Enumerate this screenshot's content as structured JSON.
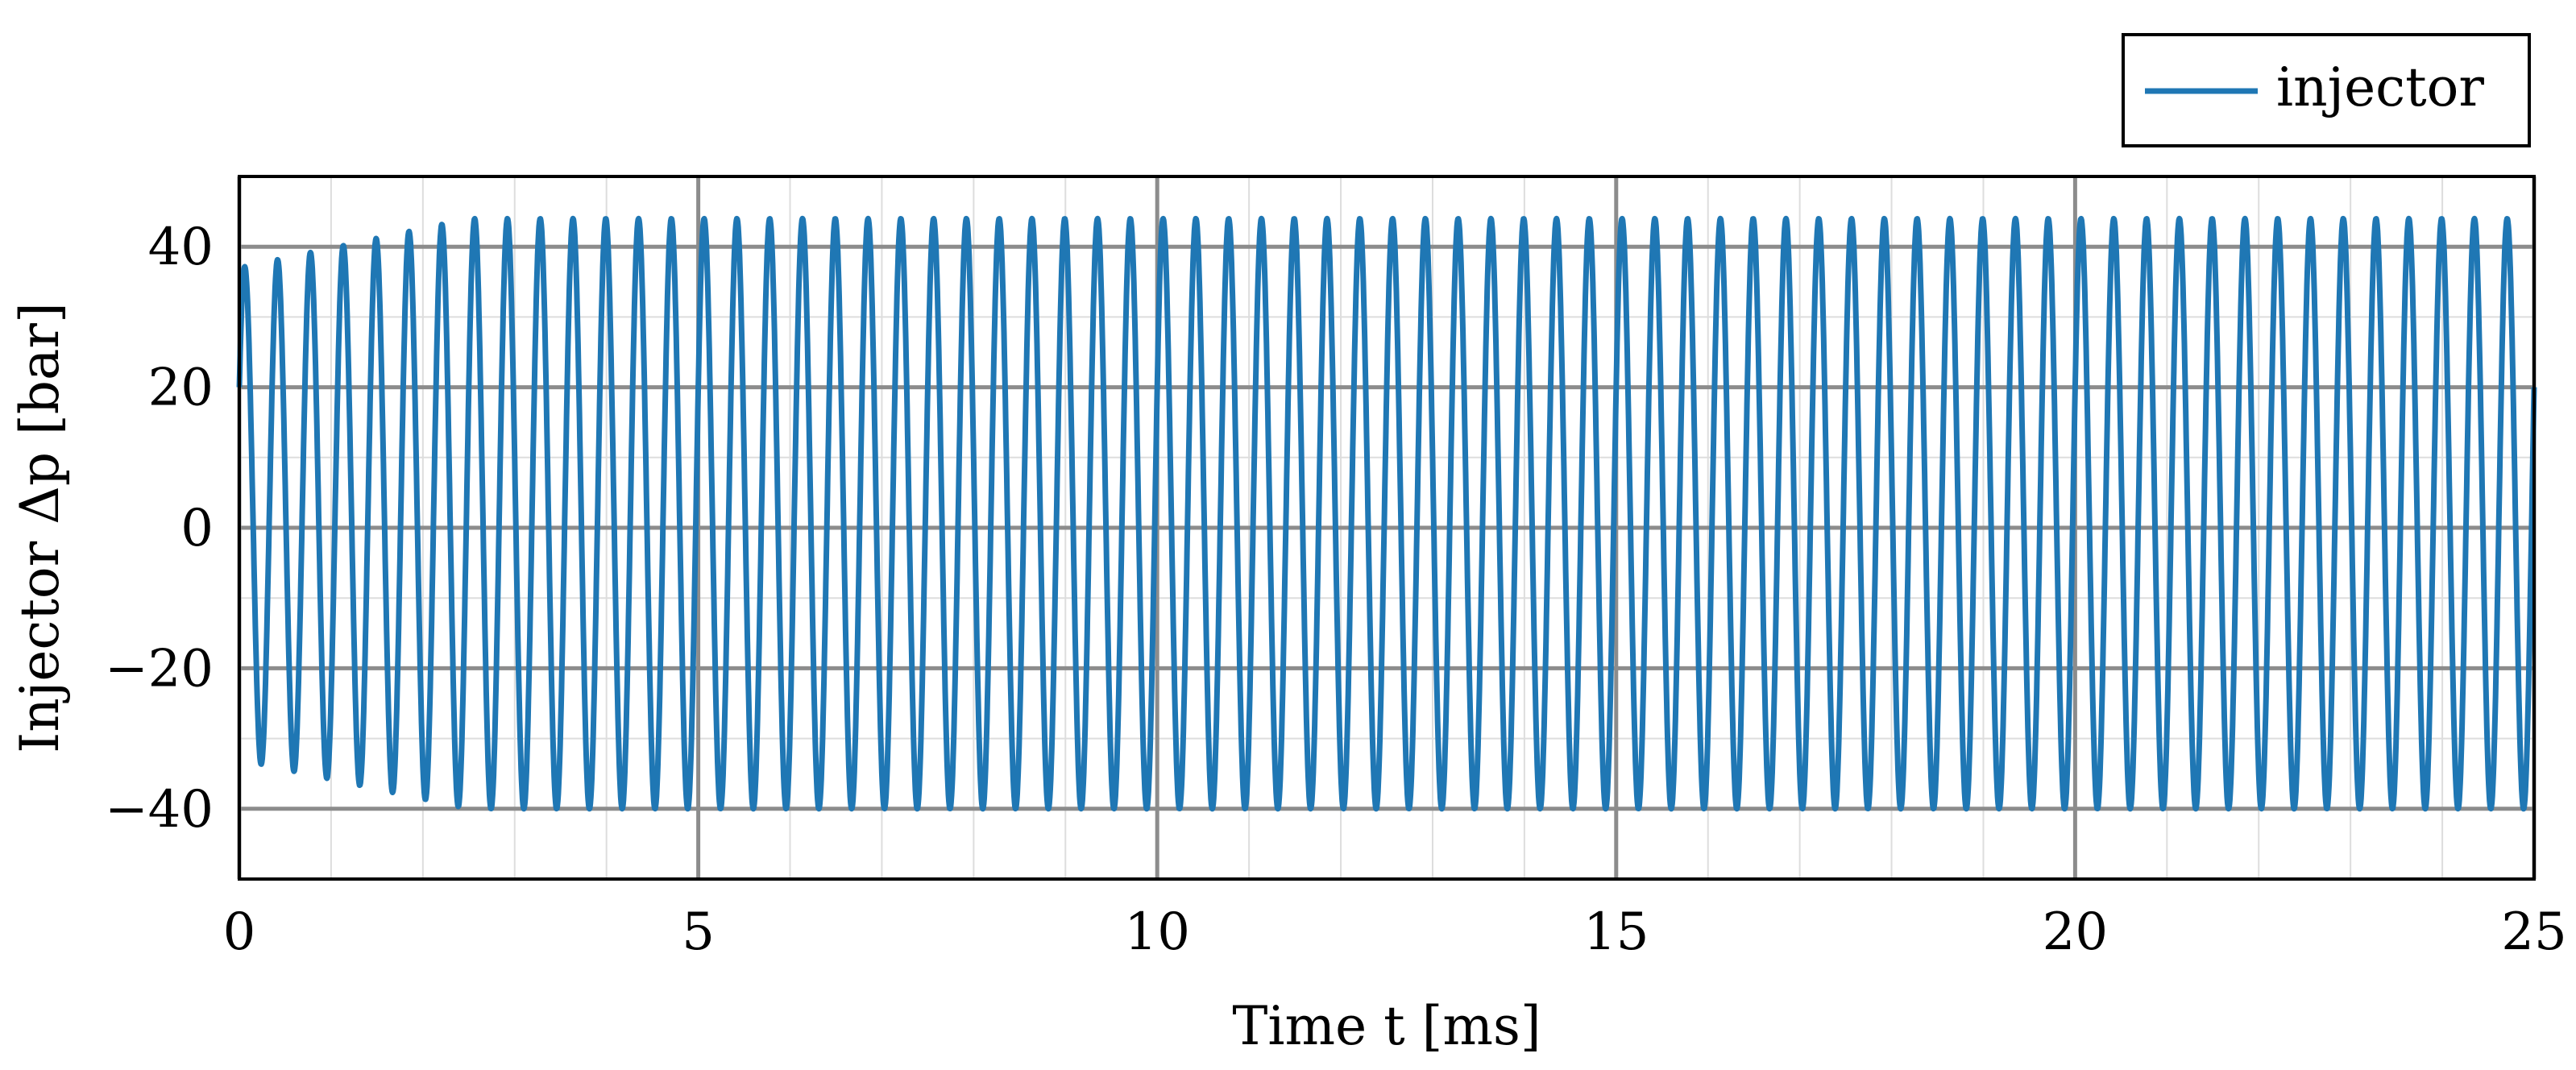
{
  "chart_data": {
    "type": "line",
    "xlabel": "Time t [ms]",
    "ylabel": "Injector Δp [bar]",
    "xlim": [
      0,
      25
    ],
    "ylim": [
      -50,
      50
    ],
    "x_ticks": [
      0,
      5,
      10,
      15,
      20,
      25
    ],
    "x_tick_labels": [
      "0",
      "5",
      "10",
      "15",
      "20",
      "25"
    ],
    "y_ticks": [
      -40,
      -20,
      0,
      20,
      40
    ],
    "y_tick_labels": [
      "−40",
      "−20",
      "0",
      "20",
      "40"
    ],
    "grid": true,
    "legend_position": "top-right, outside above plot",
    "colors": {
      "series": "#1f77b4",
      "major_grid": "#8c8c8c",
      "minor_grid": "#dddddd",
      "axes": "#000000"
    },
    "series": [
      {
        "name": "injector",
        "signal": {
          "kind": "sinusoid",
          "frequency_khz": 2.8,
          "start_value": 20,
          "initial_min": -33,
          "initial_max": 37,
          "steady_max": 44,
          "steady_min": -40,
          "settling_ms": 2.5
        }
      }
    ]
  }
}
